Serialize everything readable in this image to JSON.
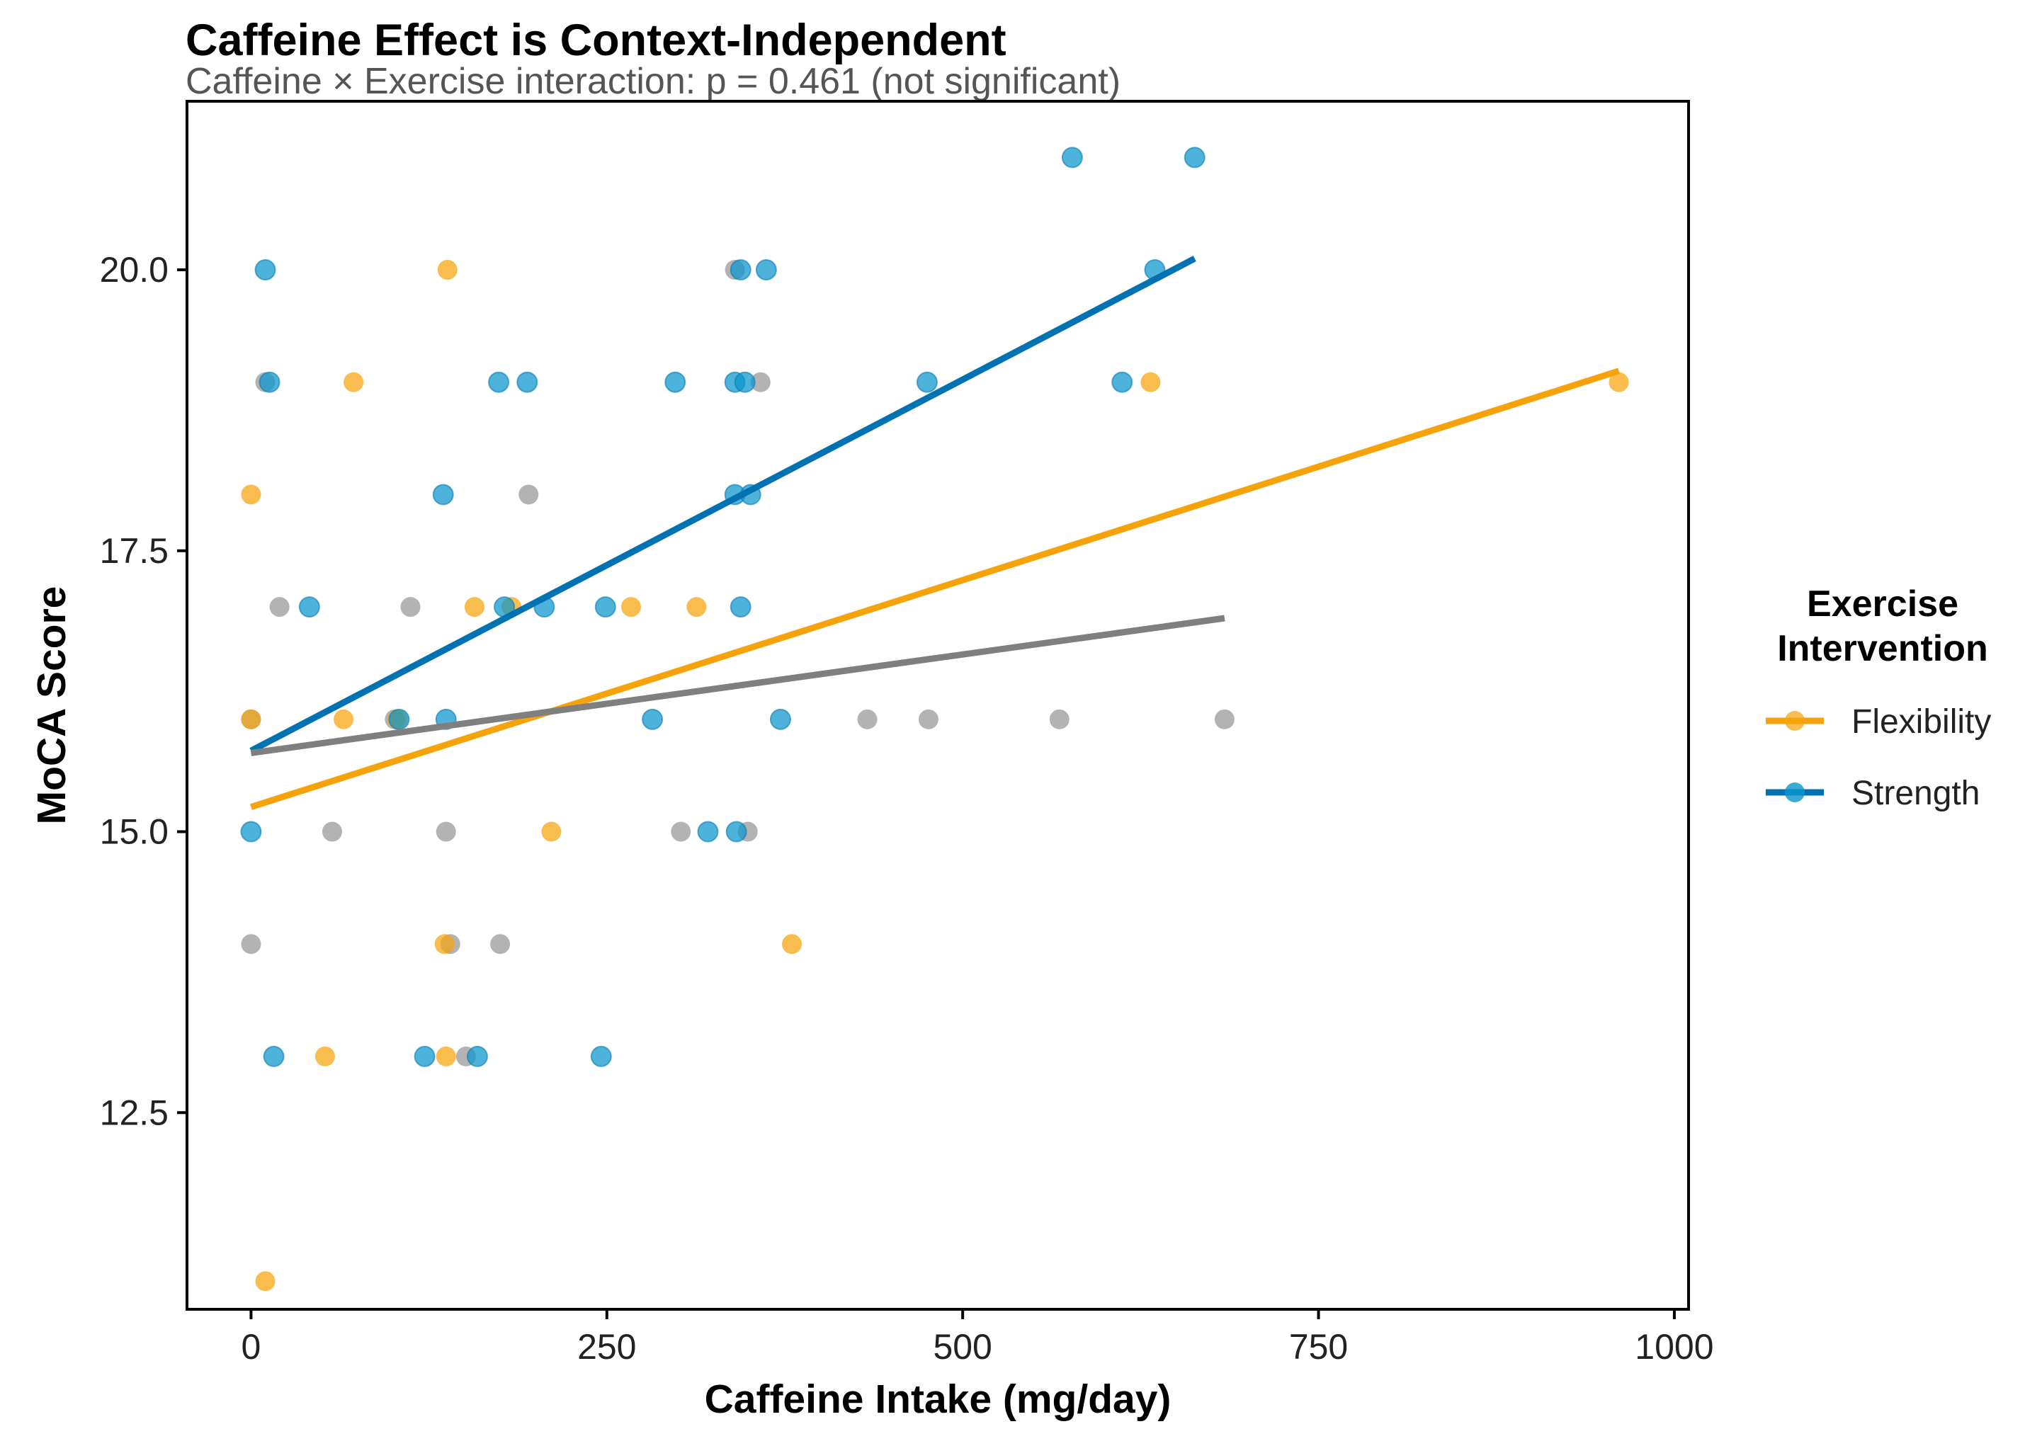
{
  "chart_data": {
    "type": "scatter",
    "title": "Caffeine Effect is Context-Independent",
    "subtitle": "Caffeine × Exercise interaction: p = 0.461 (not significant)",
    "xlabel": "Caffeine Intake (mg/day)",
    "ylabel": "MoCA Score",
    "xlim": [
      -45,
      1010
    ],
    "ylim": [
      10.75,
      21.5
    ],
    "x_ticks": [
      0,
      250,
      500,
      750,
      1000
    ],
    "x_tick_labels": [
      "0",
      "250",
      "500",
      "750",
      "1000"
    ],
    "y_ticks": [
      12.5,
      15.0,
      17.5,
      20.0
    ],
    "y_tick_labels": [
      "12.5",
      "15.0",
      "17.5",
      "20.0"
    ],
    "grid": false,
    "legend": {
      "title_lines": [
        "Exercise",
        "Intervention"
      ],
      "placement": "right",
      "entries": [
        {
          "label": "Flexibility",
          "color": "#F5A30A"
        },
        {
          "label": "Strength",
          "color": "#0072B2"
        }
      ]
    },
    "series": [
      {
        "name": "Flexibility",
        "color": "#F5A30A",
        "points": [
          [
            138,
            20
          ],
          [
            72,
            19
          ],
          [
            632,
            19
          ],
          [
            961,
            19
          ],
          [
            0,
            18
          ],
          [
            157,
            17
          ],
          [
            183,
            17
          ],
          [
            267,
            17
          ],
          [
            313,
            17
          ],
          [
            0,
            16
          ],
          [
            65,
            16
          ],
          [
            103,
            16
          ],
          [
            211,
            15
          ],
          [
            136,
            14
          ],
          [
            380,
            14
          ],
          [
            52,
            13
          ],
          [
            137,
            13
          ],
          [
            10,
            11
          ]
        ],
        "trend": [
          [
            0,
            15.22
          ],
          [
            961,
            19.1
          ]
        ]
      },
      {
        "name": "Strength",
        "color": "#0072B2",
        "points": [
          [
            10,
            20
          ],
          [
            344,
            20
          ],
          [
            362,
            20
          ],
          [
            577,
            21
          ],
          [
            663,
            21
          ],
          [
            635,
            20
          ],
          [
            13,
            19
          ],
          [
            174,
            19
          ],
          [
            194,
            19
          ],
          [
            298,
            19
          ],
          [
            340,
            19
          ],
          [
            347,
            19
          ],
          [
            475,
            19
          ],
          [
            612,
            19
          ],
          [
            135,
            18
          ],
          [
            340,
            18
          ],
          [
            351,
            18
          ],
          [
            41,
            17
          ],
          [
            178,
            17
          ],
          [
            206,
            17
          ],
          [
            249,
            17
          ],
          [
            344,
            17
          ],
          [
            104,
            16
          ],
          [
            137,
            16
          ],
          [
            282,
            16
          ],
          [
            372,
            16
          ],
          [
            0,
            15
          ],
          [
            321,
            15
          ],
          [
            341,
            15
          ],
          [
            16,
            13
          ],
          [
            122,
            13
          ],
          [
            159,
            13
          ],
          [
            246,
            13
          ]
        ],
        "trend": [
          [
            0,
            15.72
          ],
          [
            663,
            20.1
          ]
        ]
      },
      {
        "color": "#999999",
        "points": [
          [
            340,
            20
          ],
          [
            10,
            19
          ],
          [
            358,
            19
          ],
          [
            195,
            18
          ],
          [
            20,
            17
          ],
          [
            112,
            17
          ],
          [
            0,
            16
          ],
          [
            101,
            16
          ],
          [
            433,
            16
          ],
          [
            476,
            16
          ],
          [
            568,
            16
          ],
          [
            684,
            16
          ],
          [
            57,
            15
          ],
          [
            137,
            15
          ],
          [
            302,
            15
          ],
          [
            349,
            15
          ],
          [
            0,
            14
          ],
          [
            140,
            14
          ],
          [
            175,
            14
          ],
          [
            151,
            13
          ]
        ],
        "trend": [
          [
            0,
            15.7
          ],
          [
            684,
            16.9
          ]
        ]
      }
    ]
  }
}
